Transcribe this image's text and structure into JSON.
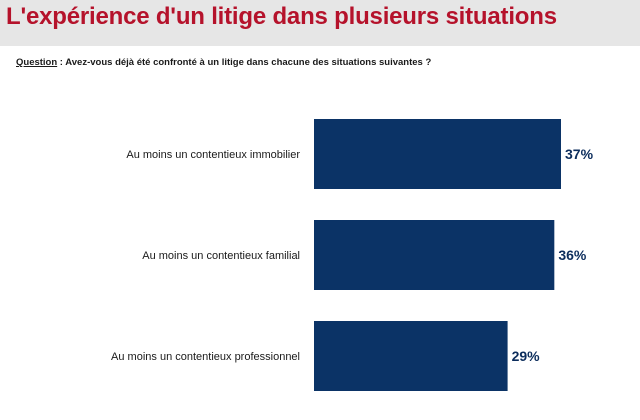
{
  "header": {
    "title": "L'expérience d'un litige dans plusieurs situations"
  },
  "question": {
    "label": "Question",
    "text": " : Avez-vous déjà été confronté à un litige dans chacune des situations suivantes ?"
  },
  "colors": {
    "title": "#b5122b",
    "header_bg": "#e6e6e6",
    "bar": "#0b3366",
    "value_text": "#0c2d5c"
  },
  "chart_data": {
    "type": "bar",
    "orientation": "horizontal",
    "categories": [
      "Au moins un contentieux immobilier",
      "Au moins un contentieux familial",
      "Au moins un contentieux professionnel"
    ],
    "values": [
      37,
      36,
      29
    ],
    "value_labels": [
      "37%",
      "36%",
      "29%"
    ],
    "unit": "%",
    "xlim": [
      0,
      37
    ],
    "grid": false,
    "legend": "none"
  }
}
